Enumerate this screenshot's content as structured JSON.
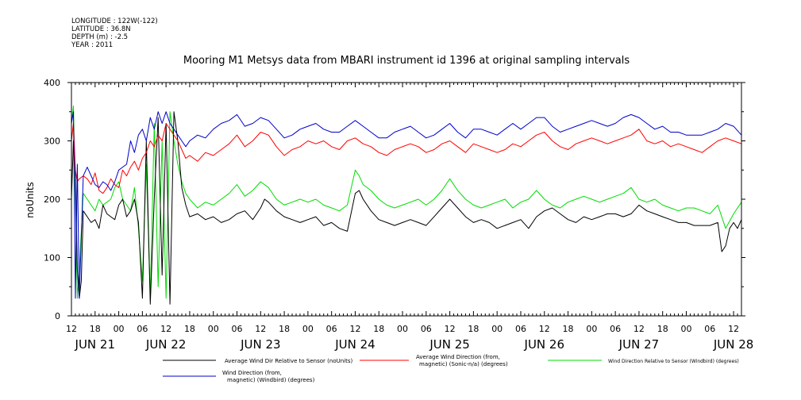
{
  "meta": {
    "longitude": "LONGITUDE : 122W(-122)",
    "latitude": "LATITUDE : 36.8N",
    "depth": "DEPTH (m) : -2.5",
    "year": "YEAR : 2011"
  },
  "chart_data": {
    "type": "line",
    "title": "Mooring M1 Metsys data from MBARI instrument id 1396 at original sampling intervals",
    "ylabel": "noUnits",
    "xlabel": "",
    "ylim": [
      0,
      400
    ],
    "yticks": [
      0,
      100,
      200,
      300,
      400
    ],
    "grid": false,
    "legend_position": "bottom",
    "x_range_hours": [
      12,
      182
    ],
    "hour_tick_labels": [
      {
        "h": 12,
        "l": "12"
      },
      {
        "h": 18,
        "l": "18"
      },
      {
        "h": 24,
        "l": "00"
      },
      {
        "h": 30,
        "l": "06"
      },
      {
        "h": 36,
        "l": "12"
      },
      {
        "h": 42,
        "l": "18"
      },
      {
        "h": 48,
        "l": "00"
      },
      {
        "h": 54,
        "l": "06"
      },
      {
        "h": 60,
        "l": "12"
      },
      {
        "h": 66,
        "l": "18"
      },
      {
        "h": 72,
        "l": "00"
      },
      {
        "h": 78,
        "l": "06"
      },
      {
        "h": 84,
        "l": "12"
      },
      {
        "h": 90,
        "l": "18"
      },
      {
        "h": 96,
        "l": "00"
      },
      {
        "h": 102,
        "l": "06"
      },
      {
        "h": 108,
        "l": "12"
      },
      {
        "h": 114,
        "l": "18"
      },
      {
        "h": 120,
        "l": "00"
      },
      {
        "h": 126,
        "l": "06"
      },
      {
        "h": 132,
        "l": "12"
      },
      {
        "h": 138,
        "l": "18"
      },
      {
        "h": 144,
        "l": "00"
      },
      {
        "h": 150,
        "l": "06"
      },
      {
        "h": 156,
        "l": "12"
      },
      {
        "h": 162,
        "l": "18"
      },
      {
        "h": 168,
        "l": "00"
      },
      {
        "h": 174,
        "l": "06"
      },
      {
        "h": 180,
        "l": "12"
      }
    ],
    "day_labels": [
      {
        "h": 18,
        "l": "JUN 21"
      },
      {
        "h": 36,
        "l": "JUN 22"
      },
      {
        "h": 60,
        "l": "JUN 23"
      },
      {
        "h": 84,
        "l": "JUN 24"
      },
      {
        "h": 108,
        "l": "JUN 25"
      },
      {
        "h": 132,
        "l": "JUN 26"
      },
      {
        "h": 156,
        "l": "JUN 27"
      },
      {
        "h": 180,
        "l": "JUN 28"
      }
    ],
    "series": [
      {
        "name": "Average Wind Dir Relative to Sensor (noUnits)",
        "color": "#000000",
        "x": [
          12,
          12.5,
          13,
          13.5,
          14,
          14.5,
          15,
          16,
          17,
          18,
          19,
          20,
          21,
          22,
          23,
          24,
          25,
          26,
          27,
          28,
          29,
          30,
          31,
          32,
          33,
          34,
          35,
          36,
          37,
          38,
          39,
          40,
          41,
          42,
          44,
          46,
          48,
          50,
          52,
          54,
          56,
          58,
          60,
          61,
          62,
          64,
          66,
          68,
          70,
          72,
          74,
          76,
          78,
          80,
          82,
          84,
          85,
          86,
          88,
          90,
          92,
          94,
          96,
          98,
          100,
          102,
          104,
          106,
          108,
          110,
          112,
          114,
          116,
          118,
          120,
          122,
          124,
          126,
          128,
          130,
          132,
          134,
          136,
          138,
          140,
          142,
          144,
          146,
          148,
          150,
          152,
          154,
          156,
          158,
          160,
          162,
          164,
          166,
          168,
          170,
          172,
          174,
          176,
          177,
          178,
          179,
          180,
          181,
          182
        ],
        "values": [
          200,
          300,
          240,
          80,
          30,
          60,
          180,
          170,
          160,
          165,
          150,
          190,
          175,
          170,
          165,
          190,
          200,
          170,
          180,
          200,
          160,
          30,
          300,
          20,
          200,
          340,
          70,
          330,
          20,
          350,
          300,
          220,
          190,
          170,
          175,
          165,
          170,
          160,
          165,
          175,
          180,
          165,
          185,
          200,
          195,
          180,
          170,
          165,
          160,
          165,
          170,
          155,
          160,
          150,
          145,
          210,
          215,
          200,
          180,
          165,
          160,
          155,
          160,
          165,
          160,
          155,
          170,
          185,
          200,
          185,
          170,
          160,
          165,
          160,
          150,
          155,
          160,
          165,
          150,
          170,
          180,
          185,
          175,
          165,
          160,
          170,
          165,
          170,
          175,
          175,
          170,
          175,
          190,
          180,
          175,
          170,
          165,
          160,
          160,
          155,
          155,
          155,
          160,
          110,
          120,
          150,
          160,
          150,
          165
        ]
      },
      {
        "name": "Average Wind Direction (from, magnetic) (Sonic-n/a) (degrees)",
        "color": "#ff0000",
        "x": [
          12,
          12.5,
          13,
          13.5,
          14,
          15,
          16,
          17,
          18,
          19,
          20,
          21,
          22,
          23,
          24,
          25,
          26,
          27,
          28,
          29,
          30,
          31,
          32,
          33,
          34,
          35,
          36,
          37,
          38,
          39,
          40,
          41,
          42,
          44,
          46,
          48,
          50,
          52,
          54,
          56,
          58,
          60,
          62,
          64,
          66,
          68,
          70,
          72,
          74,
          76,
          78,
          80,
          82,
          84,
          86,
          88,
          90,
          92,
          94,
          96,
          98,
          100,
          102,
          104,
          106,
          108,
          110,
          112,
          114,
          116,
          118,
          120,
          122,
          124,
          126,
          128,
          130,
          132,
          134,
          136,
          138,
          140,
          142,
          144,
          146,
          148,
          150,
          152,
          154,
          156,
          158,
          160,
          162,
          164,
          166,
          168,
          170,
          172,
          174,
          176,
          178,
          180,
          182
        ],
        "values": [
          300,
          330,
          250,
          230,
          235,
          240,
          235,
          225,
          245,
          215,
          210,
          220,
          235,
          225,
          220,
          250,
          240,
          255,
          265,
          250,
          270,
          280,
          300,
          290,
          310,
          300,
          330,
          320,
          310,
          300,
          285,
          270,
          275,
          265,
          280,
          275,
          285,
          295,
          310,
          290,
          300,
          315,
          310,
          290,
          275,
          285,
          290,
          300,
          295,
          300,
          290,
          285,
          300,
          305,
          295,
          290,
          280,
          275,
          285,
          290,
          295,
          290,
          280,
          285,
          295,
          300,
          290,
          280,
          295,
          290,
          285,
          280,
          285,
          295,
          290,
          300,
          310,
          315,
          300,
          290,
          285,
          295,
          300,
          305,
          300,
          295,
          300,
          305,
          310,
          320,
          300,
          295,
          300,
          290,
          295,
          290,
          285,
          280,
          290,
          300,
          305,
          300,
          295
        ]
      },
      {
        "name": "Wind Direction Relative to Sensor (Windbird) (degrees)",
        "color": "#00dd00",
        "x": [
          12,
          12.5,
          13,
          13.5,
          14,
          15,
          16,
          17,
          18,
          19,
          20,
          21,
          22,
          23,
          24,
          25,
          26,
          27,
          28,
          29,
          30,
          31,
          32,
          33,
          34,
          35,
          36,
          37,
          38,
          39,
          40,
          41,
          42,
          44,
          46,
          48,
          50,
          52,
          54,
          56,
          58,
          60,
          62,
          64,
          66,
          68,
          70,
          72,
          74,
          76,
          78,
          80,
          82,
          84,
          85,
          86,
          88,
          90,
          92,
          94,
          96,
          98,
          100,
          102,
          104,
          106,
          108,
          110,
          112,
          114,
          116,
          118,
          120,
          122,
          124,
          126,
          128,
          130,
          132,
          134,
          136,
          138,
          140,
          142,
          144,
          146,
          148,
          150,
          152,
          154,
          156,
          158,
          160,
          162,
          164,
          166,
          168,
          170,
          172,
          174,
          176,
          178,
          180,
          182
        ],
        "values": [
          330,
          360,
          200,
          30,
          80,
          210,
          200,
          190,
          180,
          200,
          190,
          195,
          200,
          220,
          230,
          200,
          190,
          180,
          220,
          150,
          60,
          260,
          30,
          330,
          50,
          300,
          30,
          350,
          300,
          260,
          230,
          210,
          200,
          185,
          195,
          190,
          200,
          210,
          225,
          205,
          215,
          230,
          220,
          200,
          190,
          195,
          200,
          195,
          200,
          190,
          185,
          180,
          190,
          250,
          240,
          225,
          215,
          200,
          190,
          185,
          190,
          195,
          200,
          190,
          200,
          215,
          235,
          215,
          200,
          190,
          185,
          190,
          195,
          200,
          185,
          195,
          200,
          215,
          200,
          190,
          185,
          195,
          200,
          205,
          200,
          195,
          200,
          205,
          210,
          220,
          200,
          195,
          200,
          190,
          185,
          180,
          185,
          185,
          180,
          175,
          190,
          150,
          175,
          195
        ]
      },
      {
        "name": "Wind Direction (from, magnetic) (Windbird) (degrees)",
        "color": "#0000cc",
        "x": [
          12,
          12.5,
          13,
          13.5,
          14,
          15,
          16,
          17,
          18,
          19,
          20,
          21,
          22,
          23,
          24,
          25,
          26,
          27,
          28,
          29,
          30,
          31,
          32,
          33,
          34,
          35,
          36,
          37,
          38,
          39,
          40,
          41,
          42,
          44,
          46,
          48,
          50,
          52,
          54,
          56,
          58,
          60,
          62,
          64,
          66,
          68,
          70,
          72,
          74,
          76,
          78,
          80,
          82,
          84,
          86,
          88,
          90,
          92,
          94,
          96,
          98,
          100,
          102,
          104,
          106,
          108,
          110,
          112,
          114,
          116,
          118,
          120,
          122,
          124,
          126,
          128,
          130,
          132,
          134,
          136,
          138,
          140,
          142,
          144,
          146,
          148,
          150,
          152,
          154,
          156,
          158,
          160,
          162,
          164,
          166,
          168,
          170,
          172,
          174,
          176,
          178,
          180,
          182
        ],
        "values": [
          330,
          350,
          30,
          260,
          30,
          240,
          255,
          240,
          225,
          220,
          230,
          225,
          215,
          230,
          250,
          255,
          260,
          300,
          280,
          310,
          320,
          300,
          340,
          320,
          350,
          330,
          350,
          330,
          320,
          310,
          300,
          290,
          300,
          310,
          305,
          320,
          330,
          335,
          345,
          325,
          330,
          340,
          335,
          320,
          305,
          310,
          320,
          325,
          330,
          320,
          315,
          315,
          325,
          335,
          325,
          315,
          305,
          305,
          315,
          320,
          325,
          315,
          305,
          310,
          320,
          330,
          315,
          305,
          320,
          320,
          315,
          310,
          320,
          330,
          320,
          330,
          340,
          340,
          325,
          315,
          320,
          325,
          330,
          335,
          330,
          325,
          330,
          340,
          345,
          340,
          330,
          320,
          325,
          315,
          315,
          310,
          310,
          310,
          315,
          320,
          330,
          325,
          310
        ]
      }
    ]
  },
  "legend": {
    "black": "Average Wind Dir Relative to Sensor (noUnits)",
    "red_line1": "Average Wind Direction (from,",
    "red_line2": "magnetic) (Sonic-n/a) (degrees)",
    "green": "Wind Direction Relative to Sensor (Windbird) (degrees)",
    "blue_line1": "Wind Direction (from,",
    "blue_line2": "magnetic) (Windbird) (degrees)"
  }
}
